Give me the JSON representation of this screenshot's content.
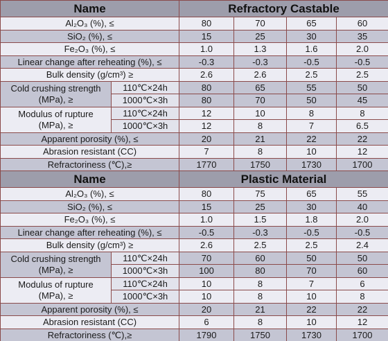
{
  "sections": [
    {
      "header": {
        "name": "Name",
        "product": "Refractory Castable"
      },
      "rows": [
        {
          "label": "Al₂O₃ (%), ≤",
          "values": [
            "80",
            "70",
            "65",
            "60"
          ]
        },
        {
          "label": "SiO₂ (%), ≤",
          "values": [
            "15",
            "25",
            "30",
            "35"
          ]
        },
        {
          "label": "Fe₂O₃ (%), ≤",
          "values": [
            "1.0",
            "1.3",
            "1.6",
            "2.0"
          ]
        },
        {
          "label": "Linear change after reheating (%), ≤",
          "values": [
            "-0.3",
            "-0.3",
            "-0.5",
            "-0.5"
          ]
        },
        {
          "label": "Bulk density (g/cm³) ≥",
          "values": [
            "2.6",
            "2.6",
            "2.5",
            "2.5"
          ]
        },
        {
          "label_lines": [
            "Cold crushing strength",
            "(MPa), ≥"
          ],
          "sub": [
            {
              "condition": "110℃×24h",
              "values": [
                "80",
                "65",
                "55",
                "50"
              ]
            },
            {
              "condition": "1000℃×3h",
              "values": [
                "80",
                "70",
                "50",
                "45"
              ]
            }
          ]
        },
        {
          "label_lines": [
            "Modulus of rupture",
            "(MPa), ≥"
          ],
          "sub": [
            {
              "condition": "110℃×24h",
              "values": [
                "12",
                "10",
                "8",
                "8"
              ]
            },
            {
              "condition": "1000℃×3h",
              "values": [
                "12",
                "8",
                "7",
                "6.5"
              ]
            }
          ]
        },
        {
          "label": "Apparent porosity (%), ≤",
          "values": [
            "20",
            "21",
            "22",
            "22"
          ]
        },
        {
          "label": "Abrasion resistant (CC)",
          "values": [
            "7",
            "8",
            "10",
            "12"
          ]
        },
        {
          "label": "Refractoriness (℃),≥",
          "values": [
            "1770",
            "1750",
            "1730",
            "1700"
          ]
        }
      ]
    },
    {
      "header": {
        "name": "Name",
        "product": "Plastic Material"
      },
      "rows": [
        {
          "label": "Al₂O₃ (%), ≤",
          "values": [
            "80",
            "75",
            "65",
            "55"
          ]
        },
        {
          "label": "SiO₂ (%), ≤",
          "values": [
            "15",
            "25",
            "30",
            "40"
          ]
        },
        {
          "label": "Fe₂O₃ (%), ≤",
          "values": [
            "1.0",
            "1.5",
            "1.8",
            "2.0"
          ]
        },
        {
          "label": "Linear change after reheating (%), ≤",
          "values": [
            "-0.5",
            "-0.3",
            "-0.5",
            "-0.5"
          ]
        },
        {
          "label": "Bulk density (g/cm³) ≥",
          "values": [
            "2.6",
            "2.5",
            "2.5",
            "2.4"
          ]
        },
        {
          "label_lines": [
            "Cold crushing strength",
            "(MPa), ≥"
          ],
          "sub": [
            {
              "condition": "110℃×24h",
              "values": [
                "70",
                "60",
                "50",
                "50"
              ]
            },
            {
              "condition": "1000℃×3h",
              "values": [
                "100",
                "80",
                "70",
                "60"
              ]
            }
          ]
        },
        {
          "label_lines": [
            "Modulus of rupture",
            "(MPa), ≥"
          ],
          "sub": [
            {
              "condition": "110℃×24h",
              "values": [
                "10",
                "8",
                "7",
                "6"
              ]
            },
            {
              "condition": "1000℃×3h",
              "values": [
                "10",
                "8",
                "10",
                "8"
              ]
            }
          ]
        },
        {
          "label": "Apparent porosity (%), ≤",
          "values": [
            "20",
            "21",
            "22",
            "22"
          ]
        },
        {
          "label": "Abrasion resistant (CC)",
          "values": [
            "6",
            "8",
            "10",
            "12"
          ]
        },
        {
          "label": "Refractoriness (℃),≥",
          "values": [
            "1790",
            "1750",
            "1730",
            "1700"
          ]
        }
      ]
    }
  ]
}
